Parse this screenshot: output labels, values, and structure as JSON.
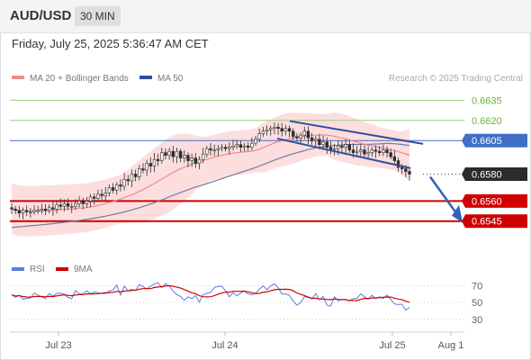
{
  "header": {
    "symbol": "AUD/USD",
    "timeframe": "30 MIN"
  },
  "datetime": "Friday, July 25, 2025 5:36:47 AM CET",
  "legend": {
    "ma20_bb": "MA 20 + Bollinger Bands",
    "ma50": "MA 50",
    "credit": "Research © 2025 Trading Central"
  },
  "colors": {
    "candle": "#2e2e2e",
    "bollinger": "#fbd3d3",
    "ma20": "#f08b8b",
    "ma50": "#6f7da6",
    "support": "#d00000",
    "resistance": "#9ccf78",
    "blue_level": "#3f6fc7",
    "channel": "#2f4f9f",
    "current": "#2b2b2b",
    "rsi": "#5a7fd6",
    "rsi_ma": "#d00000"
  },
  "chart_data": [
    {
      "type": "candlestick",
      "title": "AUD/USD",
      "timeframe": "30 MIN",
      "x_labels": [
        "Jul 23",
        "Jul 24",
        "Jul 25",
        "Aug 1"
      ],
      "ylim": [
        0.6518,
        0.6644
      ],
      "current_price": 0.658,
      "levels": [
        {
          "value": 0.6635,
          "label": "0.6635",
          "kind": "resistance"
        },
        {
          "value": 0.662,
          "label": "0.6620",
          "kind": "resistance"
        },
        {
          "value": 0.6605,
          "label": "0.6605",
          "kind": "pivot"
        },
        {
          "value": 0.658,
          "label": "0.6580",
          "kind": "current"
        },
        {
          "value": 0.656,
          "label": "0.6560",
          "kind": "support"
        },
        {
          "value": 0.6545,
          "label": "0.6545",
          "kind": "support"
        }
      ],
      "series": [
        {
          "name": "MA 20 + Bollinger Bands",
          "values_note": "overlay"
        },
        {
          "name": "MA 50",
          "values_note": "overlay"
        }
      ],
      "closes": [
        0.6554,
        0.6553,
        0.6551,
        0.6553,
        0.6552,
        0.6552,
        0.6553,
        0.6553,
        0.6554,
        0.6553,
        0.6555,
        0.6554,
        0.6557,
        0.6556,
        0.6558,
        0.6556,
        0.6556,
        0.6558,
        0.656,
        0.6558,
        0.656,
        0.6563,
        0.6562,
        0.6565,
        0.6564,
        0.6566,
        0.657,
        0.6568,
        0.6572,
        0.6571,
        0.6576,
        0.6575,
        0.658,
        0.6578,
        0.6584,
        0.6583,
        0.6588,
        0.6586,
        0.6591,
        0.659,
        0.6596,
        0.6594,
        0.6597,
        0.6593,
        0.6597,
        0.6592,
        0.6594,
        0.659,
        0.6592,
        0.6588,
        0.6591,
        0.6595,
        0.6599,
        0.6598,
        0.6598,
        0.6599,
        0.66,
        0.6599,
        0.66,
        0.6601,
        0.6602,
        0.66,
        0.6601,
        0.66,
        0.6603,
        0.6606,
        0.661,
        0.6612,
        0.6613,
        0.6614,
        0.6615,
        0.6614,
        0.6612,
        0.6614,
        0.6612,
        0.6608,
        0.6607,
        0.6609,
        0.6612,
        0.6607,
        0.6605,
        0.6606,
        0.6602,
        0.6604,
        0.66,
        0.6598,
        0.6599,
        0.6601,
        0.66,
        0.6602,
        0.6598,
        0.6596,
        0.6597,
        0.6598,
        0.6595,
        0.6596,
        0.6598,
        0.6597,
        0.6596,
        0.6598,
        0.6596,
        0.6593,
        0.659,
        0.6585,
        0.6584,
        0.6582,
        0.658
      ],
      "rsi": {
        "name": "RSI",
        "ma_name": "9MA",
        "levels": [
          70,
          50,
          30
        ],
        "ylim": [
          18,
          82
        ]
      }
    }
  ]
}
